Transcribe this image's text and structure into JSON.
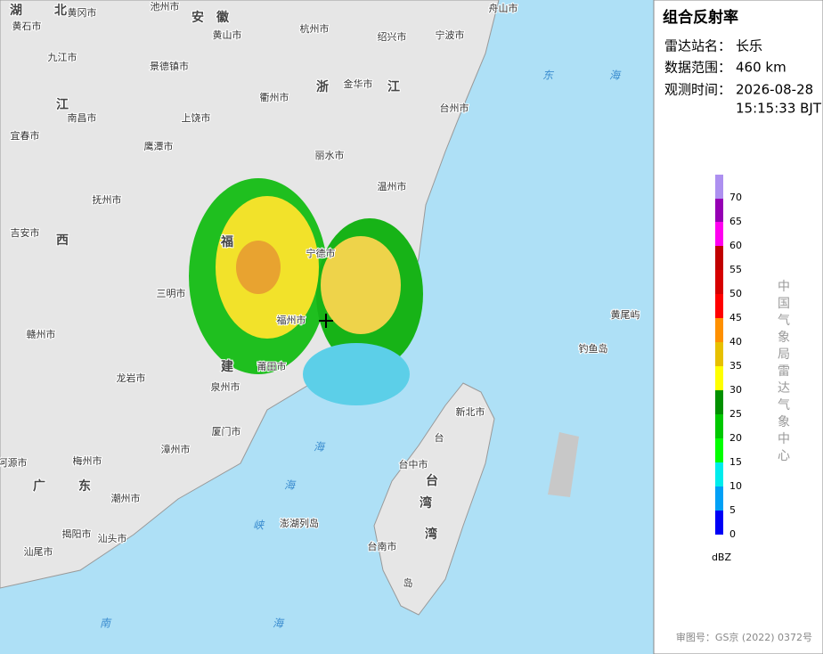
{
  "panel": {
    "title": "组合反射率",
    "rows": [
      {
        "label": "雷达站名：",
        "value": "长乐"
      },
      {
        "label": "数据范围：",
        "value": "460 km"
      },
      {
        "label": "观测时间：",
        "value": "2026-08-28",
        "value2": "15:15:33 BJT"
      }
    ],
    "legend": {
      "unit": "dBZ",
      "levels": [
        {
          "value": 0,
          "color": "#0000f6"
        },
        {
          "value": 5,
          "color": "#01a0f6"
        },
        {
          "value": 10,
          "color": "#00ecec"
        },
        {
          "value": 15,
          "color": "#01ff00"
        },
        {
          "value": 20,
          "color": "#00c800"
        },
        {
          "value": 25,
          "color": "#019000"
        },
        {
          "value": 30,
          "color": "#ffff00"
        },
        {
          "value": 35,
          "color": "#e7c000"
        },
        {
          "value": 40,
          "color": "#ff9000"
        },
        {
          "value": 45,
          "color": "#ff0000"
        },
        {
          "value": 50,
          "color": "#d60000"
        },
        {
          "value": 55,
          "color": "#c00000"
        },
        {
          "value": 60,
          "color": "#ff00f0"
        },
        {
          "value": 65,
          "color": "#9600b4"
        },
        {
          "value": 70,
          "color": "#ad90f0"
        }
      ]
    },
    "agency": "中国气象局雷达气象中心",
    "approval": "审图号：GS京 (2022) 0372号"
  },
  "map": {
    "labels": [
      "湖",
      "北",
      "黄冈市",
      "池州市",
      "安",
      "徽",
      "黄山市",
      "杭州市",
      "绍兴市",
      "宁波市",
      "舟山市",
      "黄石市",
      "九江市",
      "景德镇市",
      "衢州市",
      "浙",
      "金华市",
      "江",
      "台州市",
      "东",
      "海",
      "江",
      "南昌市",
      "上饶市",
      "宜春市",
      "鹰潭市",
      "丽水市",
      "温州市",
      "抚州市",
      "吉安市",
      "西",
      "福",
      "宁德市",
      "三明市",
      "福州市",
      "黄尾屿",
      "钓鱼岛",
      "赣州市",
      "建",
      "莆田市",
      "龙岩市",
      "泉州市",
      "新北市",
      "台",
      "厦门市",
      "漳州市",
      "梅州市",
      "河源市",
      "广",
      "东",
      "海",
      "台中市",
      "台",
      "海",
      "湾",
      "潮州市",
      "揭阳市",
      "汕头市",
      "峡",
      "澎湖列岛",
      "湾",
      "汕尾市",
      "台南市",
      "岛",
      "南",
      "海"
    ]
  }
}
